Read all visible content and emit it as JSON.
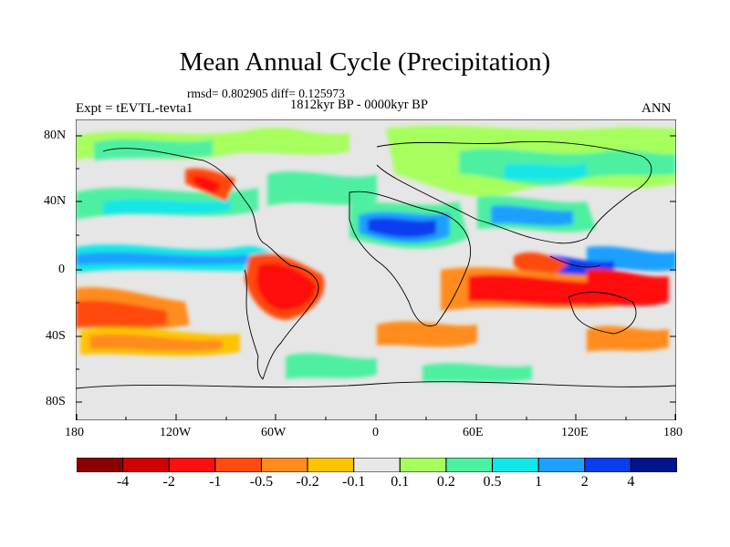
{
  "title": "Mean Annual Cycle (Precipitation)",
  "stats_text": "rmsd= 0.802905  diff= 0.125973",
  "period_text": "1812kyr BP - 0000kyr BP",
  "experiment_label": "Expt = tEVTL-tevta1",
  "season_label": "ANN",
  "y_axis_labels": [
    "80N",
    "40N",
    "0",
    "40S",
    "80S"
  ],
  "x_axis_labels": [
    "180",
    "120W",
    "60W",
    "0",
    "60E",
    "120E",
    "180"
  ],
  "colorbar": {
    "labels": [
      "-4",
      "-2",
      "-1",
      "-0.5",
      "-0.2",
      "-0.1",
      "0.1",
      "0.2",
      "0.5",
      "1",
      "2",
      "4"
    ],
    "colors": [
      "#8b0000",
      "#d10000",
      "#ff1010",
      "#ff4a10",
      "#ff8c1e",
      "#ffc400",
      "#e8e8e8",
      "#a6ff5c",
      "#4df0a0",
      "#13e6e6",
      "#1fa0ff",
      "#0a3cf0",
      "#00148c"
    ]
  }
}
